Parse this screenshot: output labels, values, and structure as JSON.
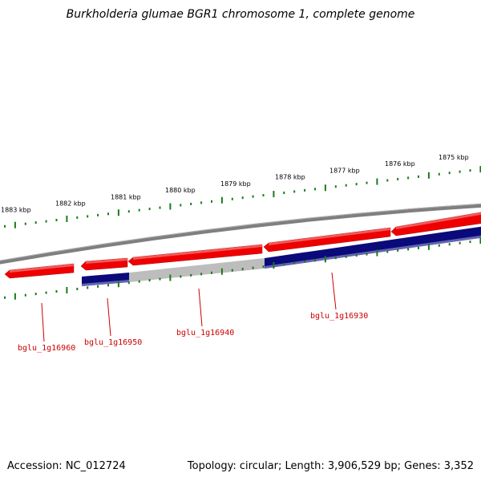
{
  "title": "Burkholderia glumae BGR1 chromosome 1, complete genome",
  "accession_text": "Accession: NC_012724",
  "stats_text": "Topology: circular; Length: 3,906,529 bp; Genes: 3,352",
  "colors": {
    "backbone": "#888888",
    "forward_gene": "#ee0000",
    "reverse_gene": "#0a0a7a",
    "reverse_gene_light": "#bdbdbd",
    "tick": "#1a7a1a",
    "label": "#cc0000"
  },
  "scale": {
    "unit": "kbp",
    "positions": [
      1883,
      1882,
      1881,
      1880,
      1879,
      1878,
      1877,
      1876,
      1875
    ],
    "labels": [
      "1883 kbp",
      "1882 kbp",
      "1881 kbp",
      "1880 kbp",
      "1879 kbp",
      "1878 kbp",
      "1877 kbp",
      "1876 kbp",
      "1875 kbp"
    ]
  },
  "genes": [
    {
      "id": "bglu_1g16960",
      "strand": "forward"
    },
    {
      "id": "bglu_1g16950",
      "strand": "forward"
    },
    {
      "id": "bglu_1g16940",
      "strand": "forward"
    },
    {
      "id": "bglu_1g16930",
      "strand": "forward"
    },
    {
      "id": "",
      "strand": "forward"
    },
    {
      "id": "",
      "strand": "reverse"
    },
    {
      "id": "",
      "strand": "reverse"
    },
    {
      "id": "",
      "strand": "reverse"
    }
  ],
  "gene_labels": [
    "bglu_1g16960",
    "bglu_1g16950",
    "bglu_1g16940",
    "bglu_1g16930"
  ]
}
